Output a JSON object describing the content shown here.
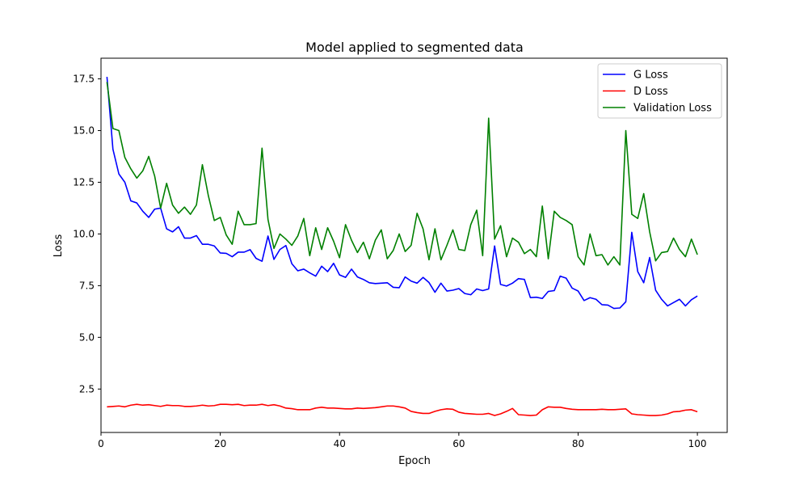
{
  "chart_data": {
    "type": "line",
    "title": "Model applied to segmented data",
    "xlabel": "Epoch",
    "ylabel": "Loss",
    "xlim": [
      0,
      105
    ],
    "ylim": [
      0.4,
      18.5
    ],
    "xticks": [
      0,
      20,
      40,
      60,
      80,
      100
    ],
    "yticks": [
      2.5,
      5.0,
      7.5,
      10.0,
      12.5,
      15.0,
      17.5
    ],
    "ytick_labels": [
      "2.5",
      "5.0",
      "7.5",
      "10.0",
      "12.5",
      "15.0",
      "17.5"
    ],
    "grid": false,
    "legend_position": "top-right",
    "x": [
      1,
      2,
      3,
      4,
      5,
      6,
      7,
      8,
      9,
      10,
      11,
      12,
      13,
      14,
      15,
      16,
      17,
      18,
      19,
      20,
      21,
      22,
      23,
      24,
      25,
      26,
      27,
      28,
      29,
      30,
      31,
      32,
      33,
      34,
      35,
      36,
      37,
      38,
      39,
      40,
      41,
      42,
      43,
      44,
      45,
      46,
      47,
      48,
      49,
      50,
      51,
      52,
      53,
      54,
      55,
      56,
      57,
      58,
      59,
      60,
      61,
      62,
      63,
      64,
      65,
      66,
      67,
      68,
      69,
      70,
      71,
      72,
      73,
      74,
      75,
      76,
      77,
      78,
      79,
      80,
      81,
      82,
      83,
      84,
      85,
      86,
      87,
      88,
      89,
      90,
      91,
      92,
      93,
      94,
      95,
      96,
      97,
      98,
      99,
      100
    ],
    "series": [
      {
        "name": "G Loss",
        "color": "#0000ff",
        "values": [
          17.6,
          14.1,
          12.9,
          12.5,
          11.6,
          11.5,
          11.1,
          10.8,
          11.2,
          11.25,
          10.25,
          10.1,
          10.35,
          9.8,
          9.8,
          9.92,
          9.5,
          9.5,
          9.42,
          9.08,
          9.06,
          8.9,
          9.12,
          9.12,
          9.24,
          8.82,
          8.68,
          9.9,
          8.77,
          9.25,
          9.44,
          8.56,
          8.22,
          8.3,
          8.12,
          7.96,
          8.44,
          8.18,
          8.58,
          8.02,
          7.9,
          8.3,
          7.92,
          7.8,
          7.64,
          7.6,
          7.62,
          7.64,
          7.42,
          7.4,
          7.92,
          7.72,
          7.62,
          7.9,
          7.65,
          7.18,
          7.62,
          7.24,
          7.28,
          7.36,
          7.12,
          7.06,
          7.34,
          7.26,
          7.34,
          9.42,
          7.56,
          7.48,
          7.62,
          7.84,
          7.8,
          6.92,
          6.94,
          6.88,
          7.22,
          7.26,
          7.96,
          7.86,
          7.38,
          7.24,
          6.78,
          6.92,
          6.84,
          6.58,
          6.56,
          6.4,
          6.42,
          6.72,
          10.08,
          8.18,
          7.64,
          8.86,
          7.28,
          6.84,
          6.52,
          6.68,
          6.84,
          6.52,
          6.82,
          7.0
        ]
      },
      {
        "name": "D Loss",
        "color": "#ff0000",
        "values": [
          1.64,
          1.66,
          1.68,
          1.64,
          1.72,
          1.76,
          1.72,
          1.74,
          1.7,
          1.66,
          1.72,
          1.7,
          1.7,
          1.66,
          1.66,
          1.68,
          1.72,
          1.68,
          1.7,
          1.76,
          1.76,
          1.74,
          1.76,
          1.7,
          1.72,
          1.72,
          1.76,
          1.7,
          1.74,
          1.68,
          1.58,
          1.55,
          1.5,
          1.5,
          1.5,
          1.58,
          1.62,
          1.58,
          1.58,
          1.56,
          1.54,
          1.54,
          1.58,
          1.56,
          1.58,
          1.6,
          1.64,
          1.68,
          1.68,
          1.64,
          1.58,
          1.42,
          1.36,
          1.32,
          1.32,
          1.42,
          1.5,
          1.54,
          1.52,
          1.38,
          1.32,
          1.3,
          1.28,
          1.28,
          1.32,
          1.22,
          1.3,
          1.42,
          1.56,
          1.26,
          1.24,
          1.22,
          1.24,
          1.5,
          1.64,
          1.62,
          1.62,
          1.56,
          1.52,
          1.5,
          1.5,
          1.5,
          1.5,
          1.52,
          1.5,
          1.5,
          1.52,
          1.54,
          1.3,
          1.26,
          1.24,
          1.22,
          1.22,
          1.24,
          1.3,
          1.4,
          1.42,
          1.48,
          1.5,
          1.4
        ]
      },
      {
        "name": "Validation Loss",
        "color": "#008000",
        "values": [
          17.35,
          15.1,
          15.0,
          13.7,
          13.15,
          12.7,
          13.05,
          13.75,
          12.8,
          11.25,
          12.45,
          11.4,
          11.0,
          11.3,
          10.95,
          11.4,
          13.35,
          11.85,
          10.65,
          10.8,
          9.95,
          9.5,
          11.1,
          10.45,
          10.45,
          10.5,
          14.15,
          10.7,
          9.3,
          10.0,
          9.75,
          9.45,
          9.9,
          10.75,
          8.95,
          10.3,
          9.25,
          10.3,
          9.65,
          8.85,
          10.45,
          9.7,
          9.1,
          9.6,
          8.8,
          9.7,
          10.2,
          8.8,
          9.2,
          10.0,
          9.15,
          9.45,
          11.0,
          10.25,
          8.75,
          10.25,
          8.75,
          9.45,
          10.2,
          9.25,
          9.2,
          10.45,
          11.15,
          8.95,
          15.6,
          9.75,
          10.4,
          8.9,
          9.8,
          9.6,
          9.05,
          9.25,
          8.9,
          11.35,
          8.8,
          11.1,
          10.8,
          10.65,
          10.45,
          8.9,
          8.5,
          10.0,
          8.95,
          9.0,
          8.5,
          8.9,
          8.5,
          15.0,
          10.95,
          10.75,
          11.95,
          10.1,
          8.7,
          9.1,
          9.15,
          9.8,
          9.25,
          8.9,
          9.75,
          9.0
        ]
      }
    ]
  }
}
